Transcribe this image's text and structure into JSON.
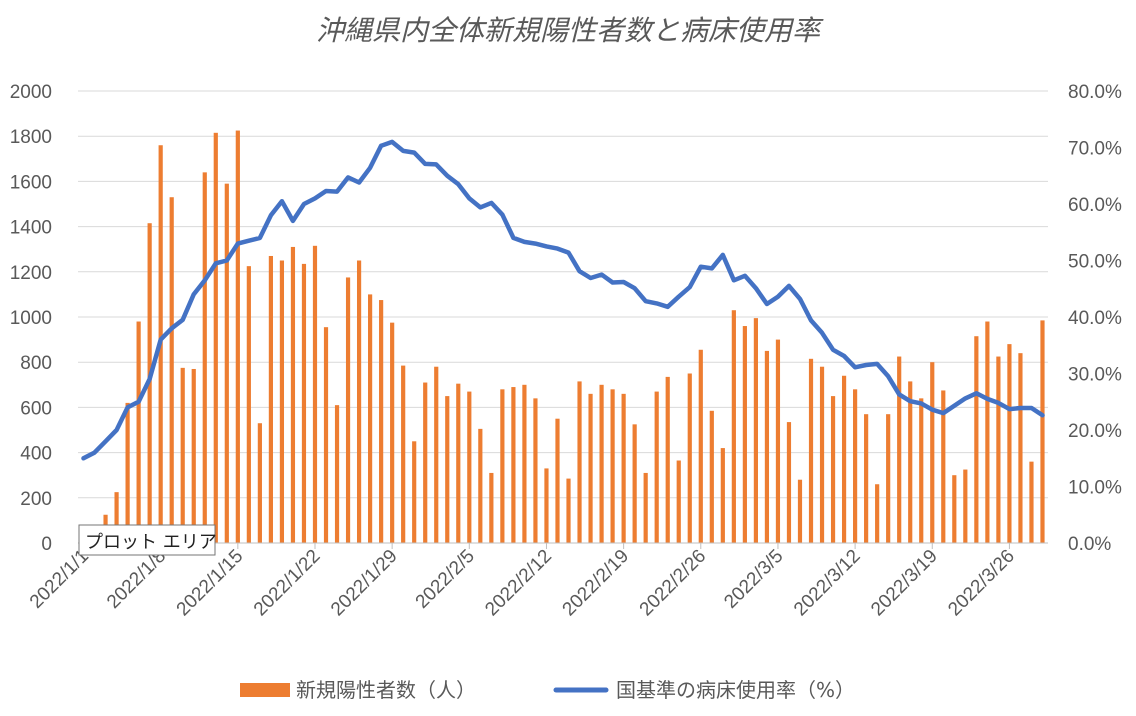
{
  "chart_data": {
    "type": "bar+line",
    "title": "沖縄県内全体新規陽性者数と病床使用率",
    "x_ticks": [
      "2022/1/1",
      "2022/1/8",
      "2022/1/15",
      "2022/1/22",
      "2022/1/29",
      "2022/2/5",
      "2022/2/12",
      "2022/2/19",
      "2022/2/26",
      "2022/3/5",
      "2022/3/12",
      "2022/3/19",
      "2022/3/26"
    ],
    "ylim_left": [
      0,
      2000
    ],
    "yticks_left": [
      "0",
      "200",
      "400",
      "600",
      "800",
      "1000",
      "1200",
      "1400",
      "1600",
      "1800",
      "2000"
    ],
    "ylim_right": [
      0,
      80
    ],
    "yticks_right": [
      "0.0%",
      "10.0%",
      "20.0%",
      "30.0%",
      "40.0%",
      "50.0%",
      "60.0%",
      "70.0%",
      "80.0%"
    ],
    "grid": true,
    "legend_position": "bottom",
    "series": [
      {
        "name": "新規陽性者数（人）",
        "kind": "bar",
        "axis": "left",
        "color": "#ED7D31",
        "values": [
          0,
          0,
          125,
          225,
          620,
          980,
          1415,
          1760,
          1530,
          775,
          770,
          1640,
          1815,
          1590,
          1825,
          1225,
          530,
          1270,
          1250,
          1310,
          1235,
          1315,
          955,
          610,
          1175,
          1250,
          1100,
          1075,
          975,
          785,
          450,
          710,
          780,
          650,
          705,
          670,
          505,
          310,
          680,
          690,
          700,
          640,
          330,
          550,
          285,
          715,
          660,
          700,
          680,
          660,
          525,
          310,
          670,
          735,
          365,
          750,
          855,
          585,
          420,
          1030,
          960,
          995,
          850,
          900,
          535,
          280,
          815,
          780,
          650,
          740,
          680,
          570,
          260,
          570,
          825,
          715,
          640,
          800,
          675,
          300,
          325,
          915,
          980,
          825,
          880,
          840,
          360,
          985
        ]
      },
      {
        "name": "国基準の病床使用率（%）",
        "kind": "line",
        "axis": "right",
        "color": "#4472C4",
        "values": [
          15,
          16,
          18,
          20,
          24,
          25,
          29,
          36,
          38,
          39.5,
          44,
          46.5,
          49.5,
          50,
          53,
          53.5,
          54,
          58,
          60.5,
          57,
          60,
          61,
          62.3,
          62.2,
          64.7,
          63.8,
          66.4,
          70.3,
          71,
          69.4,
          69.1,
          67.1,
          67,
          65,
          63.5,
          61,
          59.4,
          60.2,
          58.1,
          54,
          53.3,
          53,
          52.5,
          52.1,
          51.4,
          48.1,
          46.9,
          47.5,
          46.1,
          46.2,
          45.1,
          42.8,
          42.4,
          41.8,
          43.6,
          45.3,
          48.9,
          48.6,
          51,
          46.5,
          47.3,
          45.1,
          42.3,
          43.6,
          45.5,
          43.2,
          39.4,
          37.2,
          34.2,
          33.1,
          31.1,
          31.5,
          31.7,
          29.5,
          26.3,
          25.1,
          24.7,
          23.6,
          23,
          24.3,
          25.6,
          26.5,
          25.5,
          24.8,
          23.7,
          23.9,
          23.9,
          22.6
        ]
      }
    ]
  },
  "tooltip": {
    "label": "プロット エリア"
  }
}
